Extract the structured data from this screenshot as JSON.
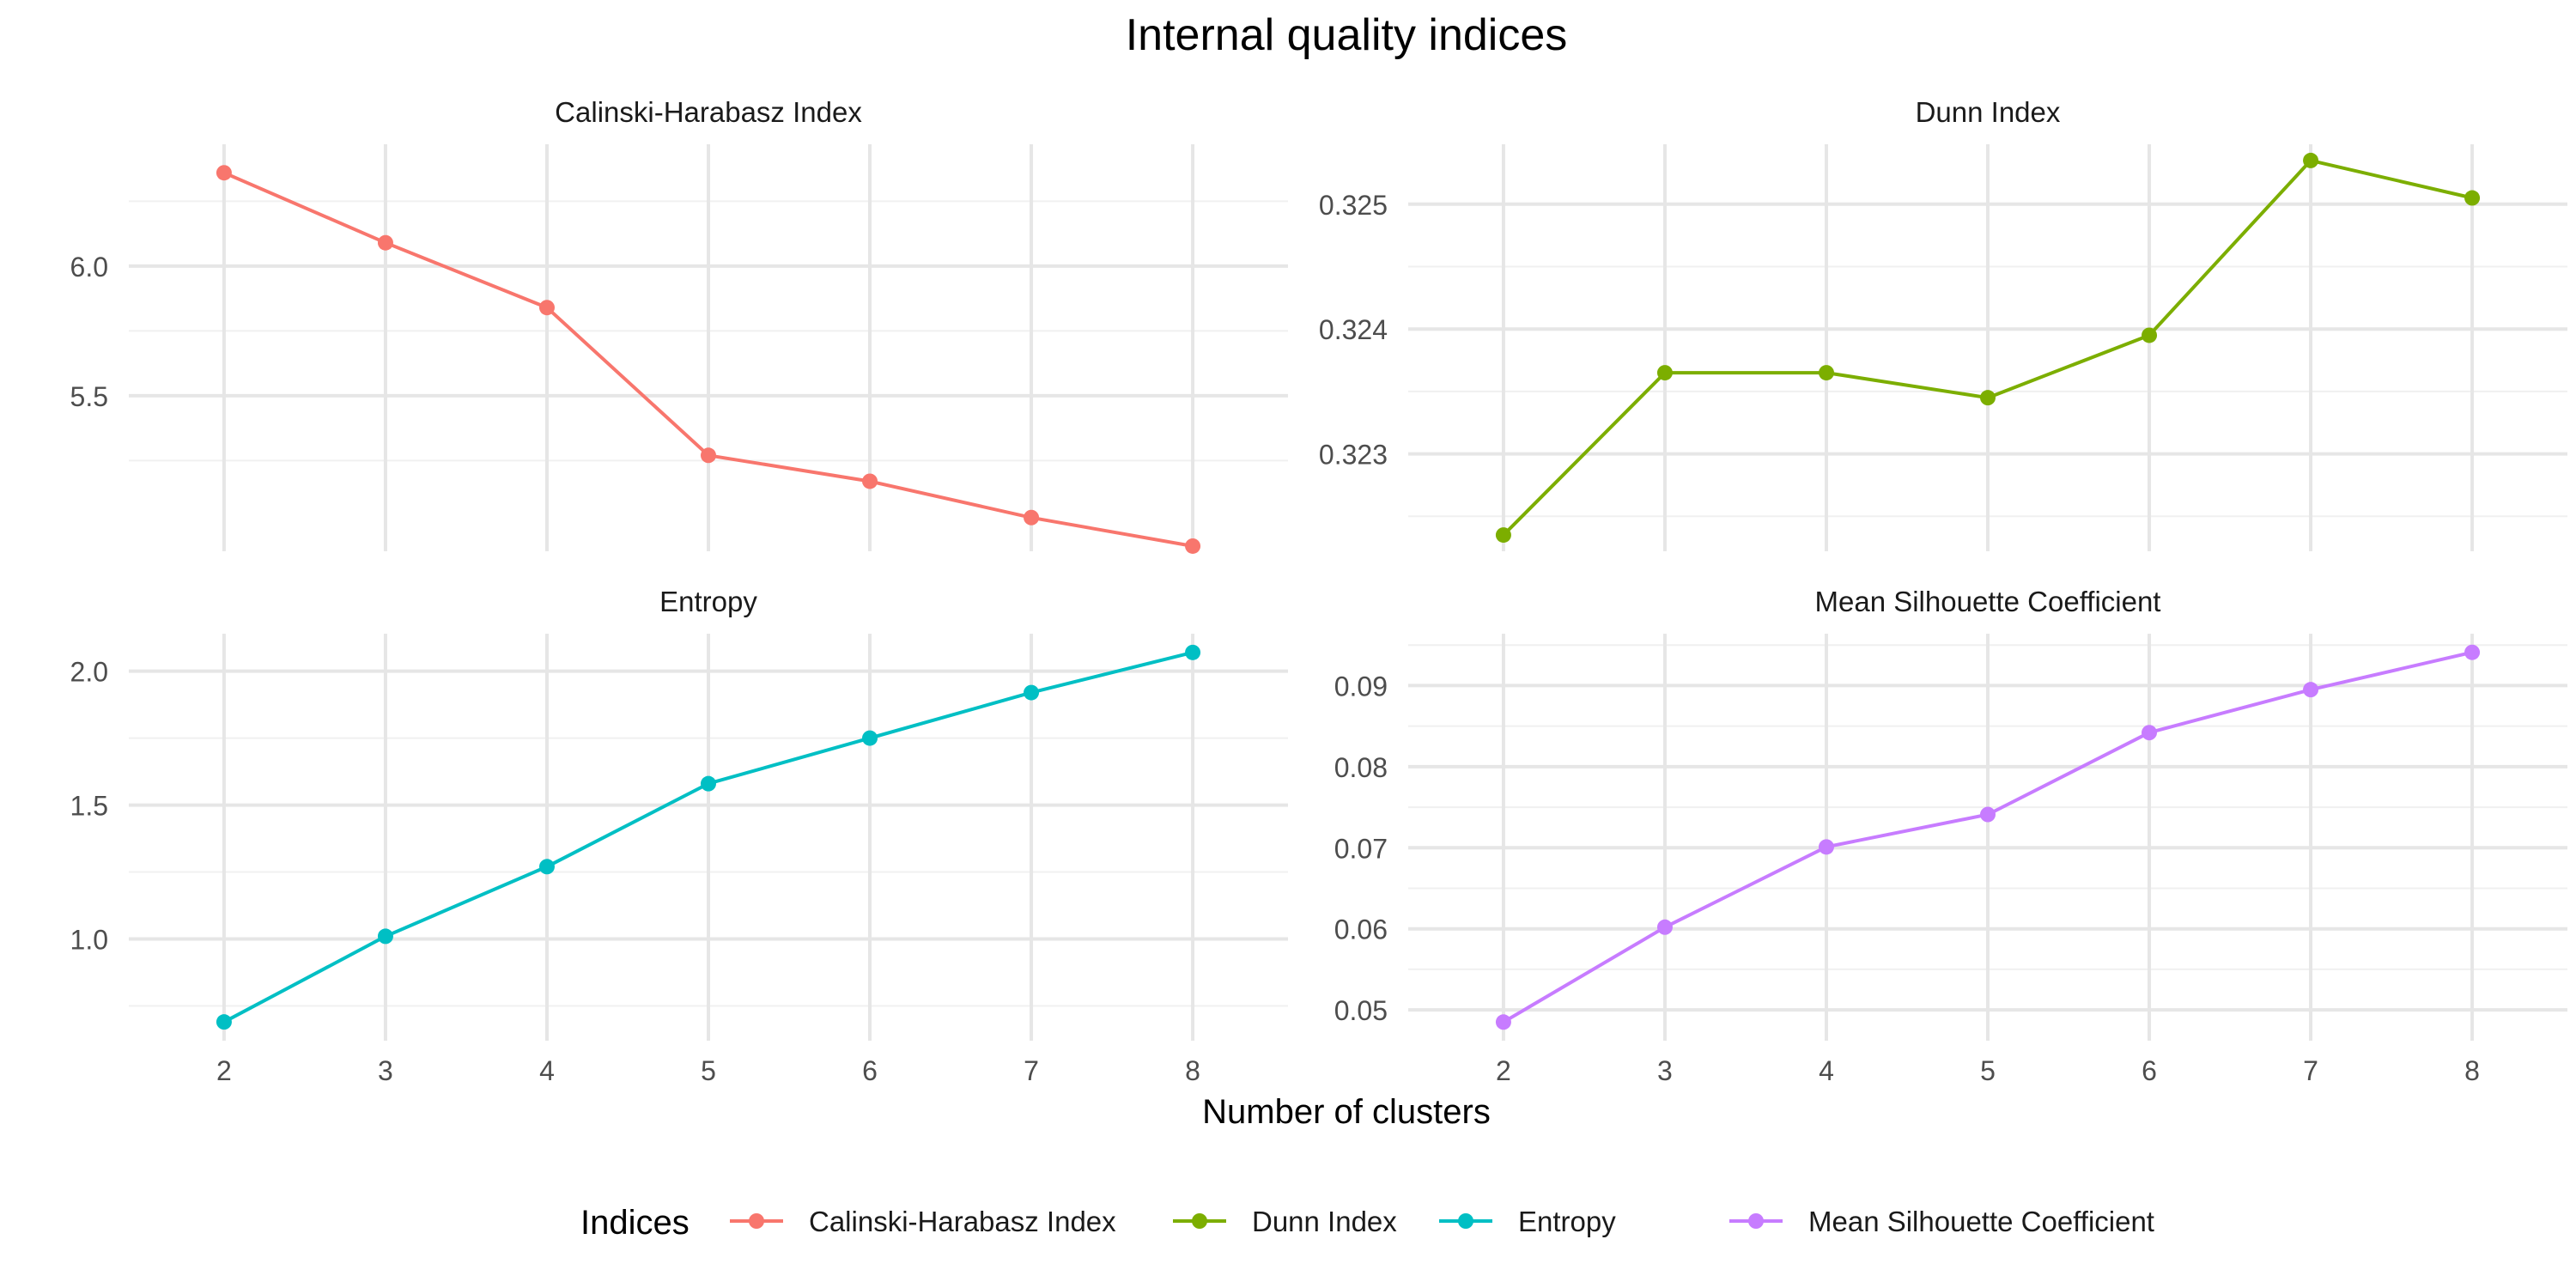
{
  "title": "Internal quality indices",
  "xlabel": "Number of clusters",
  "legend": {
    "title": "Indices",
    "position": "bottom",
    "entries": [
      {
        "label": "Calinski-Harabasz Index",
        "color": "#F8766D"
      },
      {
        "label": "Dunn Index",
        "color": "#7CAE00"
      },
      {
        "label": "Entropy",
        "color": "#00BFC4"
      },
      {
        "label": "Mean Silhouette Coefficient",
        "color": "#C77CFF"
      }
    ]
  },
  "chart_data": {
    "type": "line",
    "facets": "2x2",
    "shared_x": true,
    "free_y": true,
    "grid": true,
    "x": [
      2,
      3,
      4,
      5,
      6,
      7,
      8
    ],
    "x_ticks": [
      "2",
      "3",
      "4",
      "5",
      "6",
      "7",
      "8"
    ],
    "panels": [
      {
        "name": "Calinski-Harabasz Index",
        "color": "#F8766D",
        "values": [
          6.36,
          6.09,
          5.84,
          5.27,
          5.17,
          5.03,
          4.92
        ],
        "ylim": [
          4.9,
          6.47
        ],
        "y_ticks": [
          {
            "value": 5.5,
            "label": "5.5"
          },
          {
            "value": 6.0,
            "label": "6.0"
          }
        ],
        "y_minor": [
          5.25,
          5.75,
          6.25
        ]
      },
      {
        "name": "Dunn Index",
        "color": "#7CAE00",
        "values": [
          0.32235,
          0.32365,
          0.32365,
          0.32345,
          0.32395,
          0.32535,
          0.32505
        ],
        "ylim": [
          0.32222,
          0.32548
        ],
        "y_ticks": [
          {
            "value": 0.323,
            "label": "0.323"
          },
          {
            "value": 0.324,
            "label": "0.324"
          },
          {
            "value": 0.325,
            "label": "0.325"
          }
        ],
        "y_minor": [
          0.3225,
          0.3235,
          0.3245,
          0.3255
        ]
      },
      {
        "name": "Entropy",
        "color": "#00BFC4",
        "values": [
          0.69,
          1.01,
          1.27,
          1.58,
          1.75,
          1.92,
          2.07
        ],
        "ylim": [
          0.62,
          2.14
        ],
        "y_ticks": [
          {
            "value": 1.0,
            "label": "1.0"
          },
          {
            "value": 1.5,
            "label": "1.5"
          },
          {
            "value": 2.0,
            "label": "2.0"
          }
        ],
        "y_minor": [
          0.75,
          1.25,
          1.75
        ]
      },
      {
        "name": "Mean Silhouette Coefficient",
        "color": "#C77CFF",
        "values": [
          0.0485,
          0.0602,
          0.0701,
          0.0741,
          0.0842,
          0.0895,
          0.0941
        ],
        "ylim": [
          0.0462,
          0.0964
        ],
        "y_ticks": [
          {
            "value": 0.05,
            "label": "0.05"
          },
          {
            "value": 0.06,
            "label": "0.06"
          },
          {
            "value": 0.07,
            "label": "0.07"
          },
          {
            "value": 0.08,
            "label": "0.08"
          },
          {
            "value": 0.09,
            "label": "0.09"
          }
        ],
        "y_minor": [
          0.055,
          0.065,
          0.075,
          0.085,
          0.095
        ]
      }
    ]
  }
}
